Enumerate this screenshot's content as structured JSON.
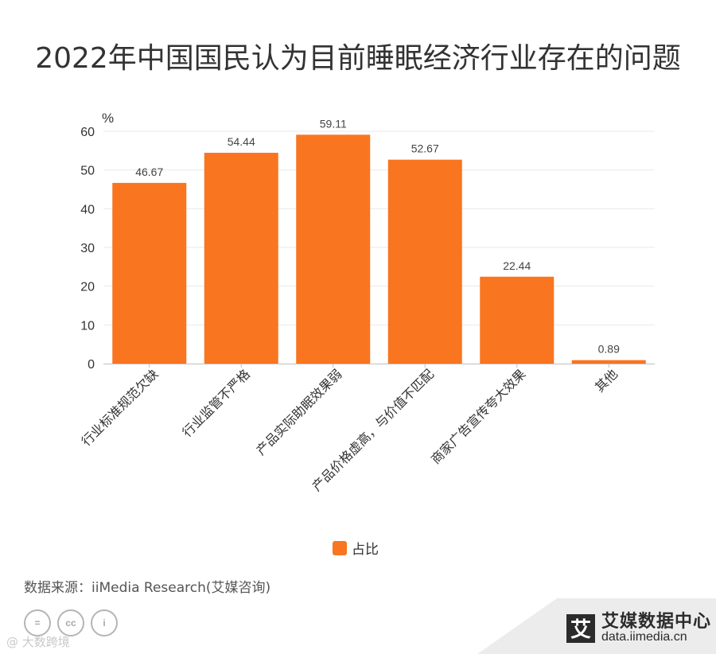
{
  "title": "2022年中国国民认为目前睡眠经济行业存在的问题",
  "chart_data": {
    "type": "bar",
    "title": "2022年中国国民认为目前睡眠经济行业存在的问题",
    "y_unit": "%",
    "categories": [
      "行业标准规范欠缺",
      "行业监管不严格",
      "产品实际助眠效果弱",
      "产品价格虚高，与价值不匹配",
      "商家广告宣传夸大效果",
      "其他"
    ],
    "series": [
      {
        "name": "占比",
        "values": [
          46.67,
          54.44,
          59.11,
          52.67,
          22.44,
          0.89
        ],
        "color": "#F97520"
      }
    ],
    "value_labels": [
      "46.67",
      "54.44",
      "59.11",
      "52.67",
      "22.44",
      "0.89"
    ],
    "ylim": [
      0,
      60
    ],
    "yticks": [
      0,
      10,
      20,
      30,
      40,
      50,
      60
    ],
    "grid": true,
    "legend_position": "bottom"
  },
  "legend": {
    "label": "占比"
  },
  "source": "数据来源：iiMedia Research(艾媒咨询)",
  "footer": {
    "cc_icons": [
      "=",
      "cc",
      "i"
    ],
    "watermark": "@ 大数跨境",
    "brand_logo": "艾",
    "brand_name": "艾媒数据中心",
    "brand_url": "data.iimedia.cn"
  }
}
